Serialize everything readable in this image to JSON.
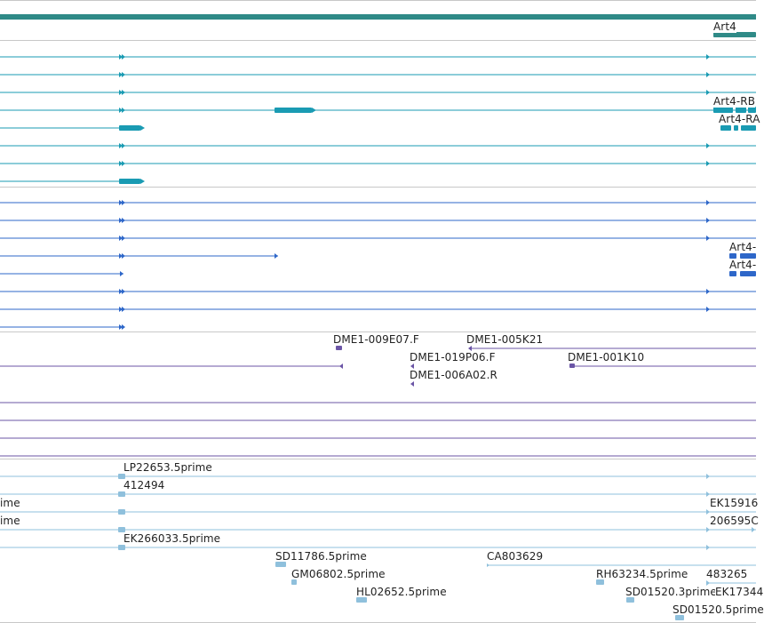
{
  "colors": {
    "gene": "#2f8a87",
    "transcript": "#1a9bb3",
    "protein": "#2e67c9",
    "bac": "#6b55a6",
    "est": "#8fc0dc",
    "track_divider": "#c8c8c8",
    "label": "#222222"
  },
  "gene_track": {
    "labels": [
      {
        "id": "art4",
        "text": "Art4"
      }
    ]
  },
  "transcript_track": {
    "labels": [
      {
        "id": "art4-rb",
        "text": "Art4-RB"
      },
      {
        "id": "art4-ra",
        "text": "Art4-RA"
      }
    ]
  },
  "protein_track": {
    "labels": [
      {
        "id": "art4-pb",
        "text": "Art4-"
      },
      {
        "id": "art4-pa",
        "text": "Art4-"
      }
    ]
  },
  "bac_track": {
    "labels": [
      {
        "id": "dme1-009e07f",
        "text": "DME1-009E07.F"
      },
      {
        "id": "dme1-005k21",
        "text": "DME1-005K21"
      },
      {
        "id": "dme1-019p06f",
        "text": "DME1-019P06.F"
      },
      {
        "id": "dme1-001k10",
        "text": "DME1-001K10"
      },
      {
        "id": "dme1-006a02r",
        "text": "DME1-006A02.R"
      }
    ]
  },
  "est_track": {
    "labels": [
      {
        "id": "lp22653",
        "text": "LP22653.5prime"
      },
      {
        "id": "412494",
        "text": "412494"
      },
      {
        "id": "ime-1",
        "text": "ime"
      },
      {
        "id": "ek15916",
        "text": "EK15916"
      },
      {
        "id": "ime-2",
        "text": "ime"
      },
      {
        "id": "206595",
        "text": "206595C"
      },
      {
        "id": "ek266033",
        "text": "EK266033.5prime"
      },
      {
        "id": "sd11786",
        "text": "SD11786.5prime"
      },
      {
        "id": "ca803629",
        "text": "CA803629"
      },
      {
        "id": "gm06802",
        "text": "GM06802.5prime"
      },
      {
        "id": "rh63234",
        "text": "RH63234.5prime"
      },
      {
        "id": "483265",
        "text": "483265"
      },
      {
        "id": "hl02652",
        "text": "HL02652.5prime"
      },
      {
        "id": "sd01520-3",
        "text": "SD01520.3prime"
      },
      {
        "id": "ek17344",
        "text": "EK17344"
      },
      {
        "id": "sd01520-5",
        "text": "SD01520.5prime"
      }
    ]
  }
}
